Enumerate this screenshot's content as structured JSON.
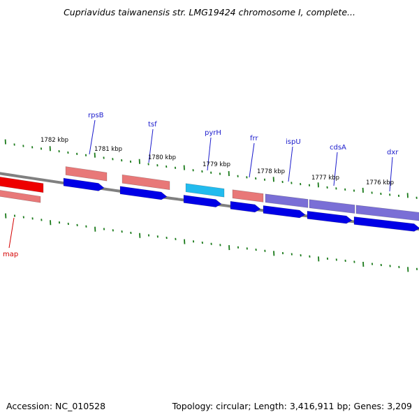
{
  "title": "Cupriavidus taiwanensis str. LMG19424 chromosome I, complete...",
  "footer": {
    "accession": "Accession: NC_010528",
    "stats": "Topology: circular; Length: 3,416,911 bp; Genes: 3,209"
  },
  "scale_labels": [
    "1782 kbp",
    "1781 kbp",
    "1780 kbp",
    "1779 kbp",
    "1778 kbp",
    "1777 kbp",
    "1776 kbp"
  ],
  "genes": [
    {
      "name": "rpsB",
      "color": "#1a1acc"
    },
    {
      "name": "tsf",
      "color": "#1a1acc"
    },
    {
      "name": "pyrH",
      "color": "#1a1acc"
    },
    {
      "name": "frr",
      "color": "#1a1acc"
    },
    {
      "name": "ispU",
      "color": "#1a1acc"
    },
    {
      "name": "cdsA",
      "color": "#1a1acc"
    },
    {
      "name": "dxr",
      "color": "#1a1acc"
    },
    {
      "name": "map",
      "color": "#d40000"
    }
  ],
  "colors": {
    "backbone": "#808080",
    "tick": "#1a7a1a",
    "cds_forward": "#0000e6",
    "gene_pink": "#e87878",
    "gene_red": "#ee0000",
    "gene_cyan": "#22bbee",
    "gene_purple": "#7a6fd6"
  }
}
